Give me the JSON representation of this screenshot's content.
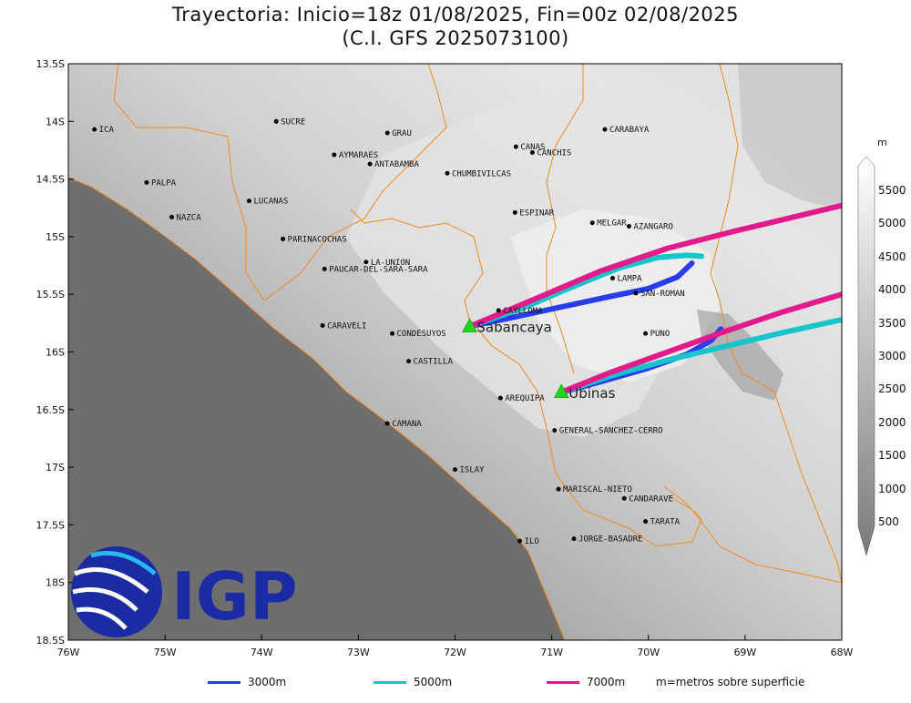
{
  "title_line1": "Trayectoria: Inicio=18z 01/08/2025, Fin=00z 02/08/2025",
  "title_line2": "(C.I. GFS 2025073100)",
  "logo_text": "IGP",
  "axes": {
    "lon_ticks": [
      "76W",
      "75W",
      "74W",
      "73W",
      "72W",
      "71W",
      "70W",
      "69W",
      "68W"
    ],
    "lat_ticks": [
      "13.5S",
      "14S",
      "14.5S",
      "15S",
      "15.5S",
      "16S",
      "16.5S",
      "17S",
      "17.5S",
      "18S",
      "18.5S"
    ],
    "lon_range": [
      -76,
      -68
    ],
    "lat_range": [
      -18.5,
      -13.5
    ]
  },
  "colorbar": {
    "unit": "m",
    "labels": [
      "5500",
      "5000",
      "4500",
      "4000",
      "3500",
      "3000",
      "2500",
      "2000",
      "1500",
      "1000",
      "500"
    ]
  },
  "volcanoes": [
    {
      "name": "Sabancaya",
      "lon": -71.85,
      "lat": -15.78
    },
    {
      "name": "Ubinas",
      "lon": -70.9,
      "lat": -16.35
    }
  ],
  "places": [
    {
      "name": "ICA",
      "lon": -75.73,
      "lat": -14.07
    },
    {
      "name": "SUCRE",
      "lon": -73.85,
      "lat": -14.0
    },
    {
      "name": "GRAU",
      "lon": -72.7,
      "lat": -14.1
    },
    {
      "name": "CARABAYA",
      "lon": -70.45,
      "lat": -14.07
    },
    {
      "name": "CANAS",
      "lon": -71.37,
      "lat": -14.22
    },
    {
      "name": "CANCHIS",
      "lon": -71.2,
      "lat": -14.27
    },
    {
      "name": "AYMARAES",
      "lon": -73.25,
      "lat": -14.29
    },
    {
      "name": "ANTABAMBA",
      "lon": -72.88,
      "lat": -14.37
    },
    {
      "name": "CHUMBIVILCAS",
      "lon": -72.08,
      "lat": -14.45
    },
    {
      "name": "PALPA",
      "lon": -75.19,
      "lat": -14.53
    },
    {
      "name": "LUCANAS",
      "lon": -74.13,
      "lat": -14.69
    },
    {
      "name": "NAZCA",
      "lon": -74.93,
      "lat": -14.83
    },
    {
      "name": "ESPINAR",
      "lon": -71.38,
      "lat": -14.79
    },
    {
      "name": "MELGAR",
      "lon": -70.58,
      "lat": -14.88
    },
    {
      "name": "AZANGARO",
      "lon": -70.2,
      "lat": -14.91
    },
    {
      "name": "PARINACOCHAS",
      "lon": -73.78,
      "lat": -15.02
    },
    {
      "name": "LA-UNION",
      "lon": -72.92,
      "lat": -15.22
    },
    {
      "name": "PAUCAR-DEL-SARA-SARA",
      "lon": -73.35,
      "lat": -15.28
    },
    {
      "name": "LAMPA",
      "lon": -70.37,
      "lat": -15.36
    },
    {
      "name": "SAN-ROMAN",
      "lon": -70.13,
      "lat": -15.49
    },
    {
      "name": "CAYLLOMA",
      "lon": -71.55,
      "lat": -15.64
    },
    {
      "name": "CARAVELI",
      "lon": -73.37,
      "lat": -15.77
    },
    {
      "name": "CONDESUYOS",
      "lon": -72.65,
      "lat": -15.84
    },
    {
      "name": "PUNO",
      "lon": -70.03,
      "lat": -15.84
    },
    {
      "name": "CASTILLA",
      "lon": -72.48,
      "lat": -16.08
    },
    {
      "name": "AREQUIPA",
      "lon": -71.53,
      "lat": -16.4
    },
    {
      "name": "CAMANA",
      "lon": -72.7,
      "lat": -16.62
    },
    {
      "name": "GENERAL-SANCHEZ-CERRO",
      "lon": -70.97,
      "lat": -16.68
    },
    {
      "name": "ISLAY",
      "lon": -72.0,
      "lat": -17.02
    },
    {
      "name": "MARISCAL-NIETO",
      "lon": -70.93,
      "lat": -17.19
    },
    {
      "name": "CANDARAVE",
      "lon": -70.25,
      "lat": -17.27
    },
    {
      "name": "TARATA",
      "lon": -70.03,
      "lat": -17.47
    },
    {
      "name": "ILO",
      "lon": -71.33,
      "lat": -17.64
    },
    {
      "name": "JORGE-BASADRE",
      "lon": -70.77,
      "lat": -17.62
    }
  ],
  "trajectories": [
    {
      "volcano": "Sabancaya",
      "height": "3000m",
      "color": "#2a3cf0",
      "points": [
        [
          -71.85,
          -15.78
        ],
        [
          -71.4,
          -15.7
        ],
        [
          -70.9,
          -15.61
        ],
        [
          -70.4,
          -15.52
        ],
        [
          -70.0,
          -15.45
        ],
        [
          -69.7,
          -15.35
        ],
        [
          -69.55,
          -15.23
        ]
      ]
    },
    {
      "volcano": "Sabancaya",
      "height": "5000m",
      "color": "#17c4cc",
      "points": [
        [
          -71.85,
          -15.78
        ],
        [
          -71.3,
          -15.62
        ],
        [
          -70.8,
          -15.44
        ],
        [
          -70.3,
          -15.27
        ],
        [
          -69.9,
          -15.18
        ],
        [
          -69.6,
          -15.16
        ],
        [
          -69.45,
          -15.17
        ]
      ]
    },
    {
      "volcano": "Sabancaya",
      "height": "7000m",
      "color": "#e21a8c",
      "points": [
        [
          -71.85,
          -15.78
        ],
        [
          -71.2,
          -15.55
        ],
        [
          -70.5,
          -15.3
        ],
        [
          -69.8,
          -15.1
        ],
        [
          -69.1,
          -14.95
        ],
        [
          -68.5,
          -14.83
        ],
        [
          -68.0,
          -14.73
        ]
      ]
    },
    {
      "volcano": "Ubinas",
      "height": "3000m",
      "color": "#2a3cf0",
      "points": [
        [
          -70.9,
          -16.35
        ],
        [
          -70.5,
          -16.26
        ],
        [
          -70.0,
          -16.14
        ],
        [
          -69.6,
          -16.02
        ],
        [
          -69.35,
          -15.9
        ],
        [
          -69.25,
          -15.8
        ]
      ]
    },
    {
      "volcano": "Ubinas",
      "height": "5000m",
      "color": "#17c4cc",
      "points": [
        [
          -70.9,
          -16.35
        ],
        [
          -70.4,
          -16.21
        ],
        [
          -69.8,
          -16.07
        ],
        [
          -69.2,
          -15.95
        ],
        [
          -68.6,
          -15.83
        ],
        [
          -68.0,
          -15.72
        ]
      ]
    },
    {
      "volcano": "Ubinas",
      "height": "7000m",
      "color": "#e21a8c",
      "points": [
        [
          -70.9,
          -16.35
        ],
        [
          -70.4,
          -16.18
        ],
        [
          -69.8,
          -16.0
        ],
        [
          -69.2,
          -15.82
        ],
        [
          -68.6,
          -15.65
        ],
        [
          -68.0,
          -15.5
        ]
      ]
    }
  ],
  "legend": {
    "items": [
      {
        "label": "3000m",
        "color": "#2a3cf0"
      },
      {
        "label": "5000m",
        "color": "#17c4cc"
      },
      {
        "label": "7000m",
        "color": "#e21a8c"
      }
    ],
    "note": "m=metros sobre superficie"
  }
}
